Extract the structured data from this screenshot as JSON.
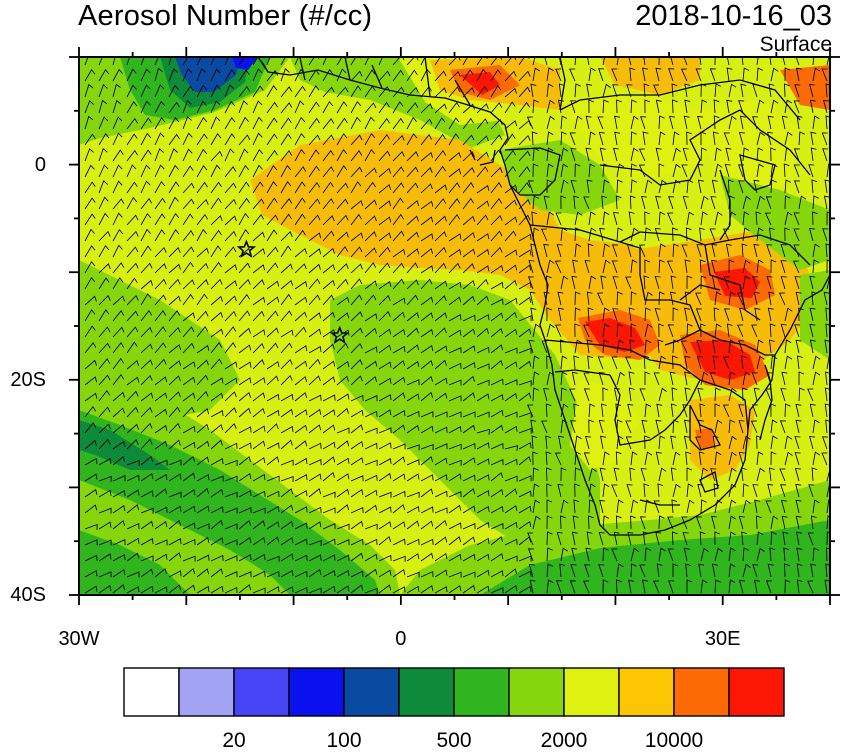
{
  "header": {
    "title": "Aerosol Number (#/cc)",
    "date": "2018-10-16_03",
    "level": "Surface"
  },
  "map": {
    "lon_range": [
      -30,
      40
    ],
    "lat_range": [
      -40,
      10
    ],
    "lat_labels": [
      {
        "value": 0,
        "text": "0"
      },
      {
        "value": -20,
        "text": "20S"
      },
      {
        "value": -40,
        "text": "40S"
      }
    ],
    "lon_labels": [
      {
        "value": -30,
        "text": "30W"
      },
      {
        "value": 0,
        "text": "0"
      },
      {
        "value": 30,
        "text": "30E"
      }
    ],
    "markers": [
      {
        "name": "star-marker-ascension",
        "lon": -14.4,
        "lat": -7.9
      },
      {
        "name": "star-marker-st-helena",
        "lon": -5.7,
        "lat": -15.9
      }
    ],
    "colors": {
      "background_mid": "#d8ef14",
      "land_orange": "#f7bc0a",
      "land_red": "#f0201b"
    }
  },
  "colorbar": {
    "colors": [
      "#ffffff",
      "#a3a3f3",
      "#4545f5",
      "#0a10ee",
      "#0a4aa0",
      "#0d8a3a",
      "#31b51f",
      "#86d60d",
      "#dff111",
      "#fcc603",
      "#fb6a04",
      "#fc1705"
    ],
    "labels": [
      {
        "text": "20",
        "boundary": 2
      },
      {
        "text": "100",
        "boundary": 4
      },
      {
        "text": "500",
        "boundary": 6
      },
      {
        "text": "2000",
        "boundary": 8
      },
      {
        "text": "10000",
        "boundary": 10
      }
    ]
  }
}
